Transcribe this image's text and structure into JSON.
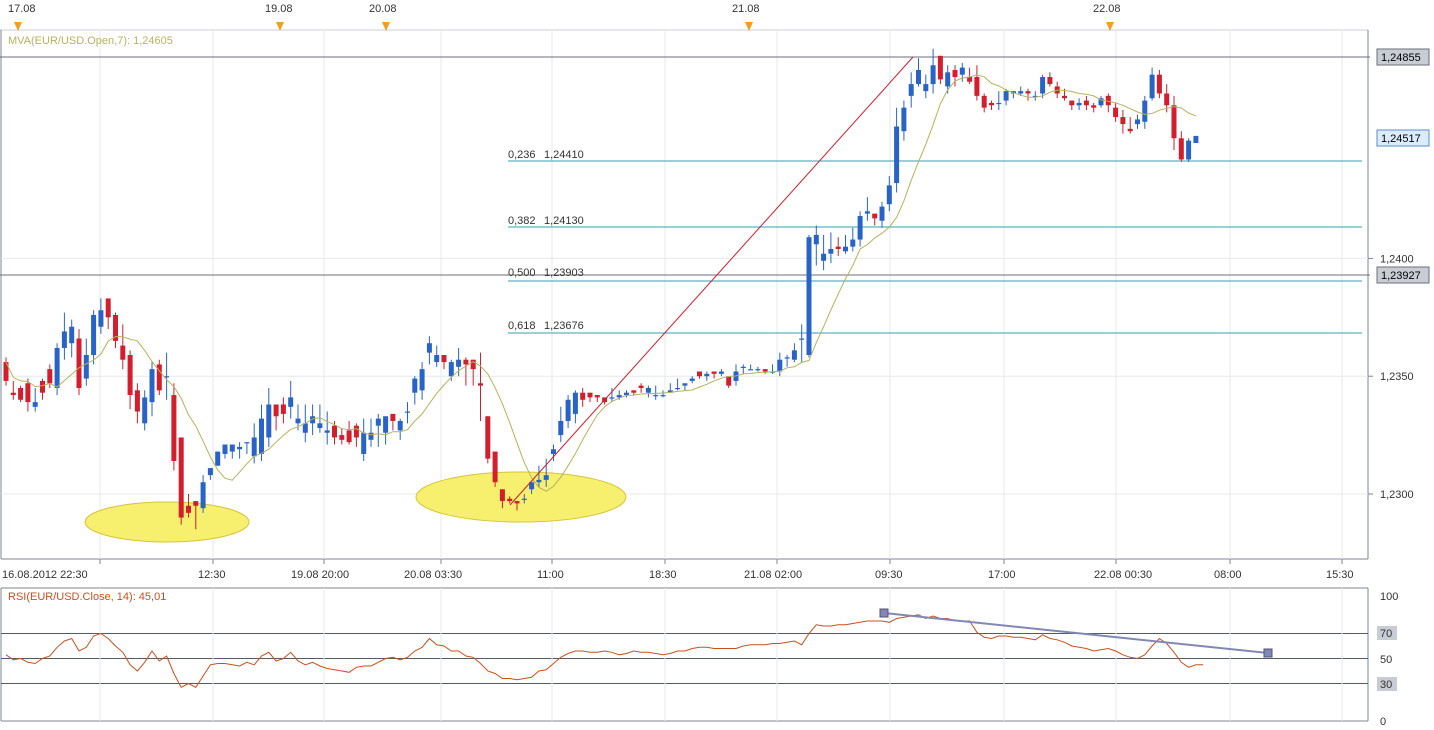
{
  "colors": {
    "bull": "#2864c8",
    "bear": "#d21e2d",
    "mva": "#b4b45a",
    "fib": "#32a0b4",
    "trend": "#d21e2d",
    "rsi": "#c8501e",
    "grid": "#e6e9ee",
    "axis": "#7d8796",
    "highlight": "#f7ef6e",
    "rsi_trend": "#8288b4"
  },
  "top_date_markers": [
    "17.08",
    "19.08",
    "20.08",
    "21.08",
    "22.08"
  ],
  "mva_label": "MVA(EUR/USD.Open,7): 1,24605",
  "rsi_label": "RSI(EUR/USD.Close, 14): 45,01",
  "fib_levels": [
    {
      "ratio": "0,236",
      "value": "1,24410"
    },
    {
      "ratio": "0,382",
      "value": "1,24130"
    },
    {
      "ratio": "0,500",
      "value": "1,23903"
    },
    {
      "ratio": "0,618",
      "value": "1,23676"
    }
  ],
  "price_ticks": [
    "1,2400",
    "1,2350",
    "1,2300"
  ],
  "price_badges": [
    "1,24855",
    "1,24517",
    "1,23927"
  ],
  "time_labels": [
    "16.08.2012 22:30",
    "12:30",
    "19.08 20:00",
    "20.08 03:30",
    "11:00",
    "18:30",
    "21.08 02:00",
    "09:30",
    "17:00",
    "22.08 00:30",
    "08:00",
    "15:30"
  ],
  "rsi_ticks": [
    "100",
    "70",
    "50",
    "30",
    "0"
  ],
  "chart_data": {
    "type": "candlestick",
    "symbol": "EUR/USD",
    "ylim": [
      1.2275,
      1.2505
    ],
    "price_ticks": [
      1.23,
      1.235,
      1.24
    ],
    "candles": [
      [
        1.2356,
        1.2358,
        1.2348,
        1.2346
      ],
      [
        1.2343,
        1.2348,
        1.2342,
        1.234
      ],
      [
        1.2345,
        1.2346,
        1.234,
        1.2339
      ],
      [
        1.2347,
        1.2349,
        1.2339,
        1.2335
      ],
      [
        1.2337,
        1.2345,
        1.2339,
        1.2335
      ],
      [
        1.2348,
        1.2349,
        1.2343,
        1.234
      ],
      [
        1.2353,
        1.2355,
        1.2347,
        1.2345
      ],
      [
        1.2345,
        1.2364,
        1.2362,
        1.2342
      ],
      [
        1.2362,
        1.2377,
        1.2369,
        1.2357
      ],
      [
        1.2364,
        1.2374,
        1.2371,
        1.2358
      ],
      [
        1.2366,
        1.237,
        1.2345,
        1.2342
      ],
      [
        1.2349,
        1.2366,
        1.2359,
        1.2346
      ],
      [
        1.2359,
        1.2378,
        1.2376,
        1.2355
      ],
      [
        1.2371,
        1.2383,
        1.2378,
        1.2368
      ],
      [
        1.2383,
        1.238,
        1.2375,
        1.237
      ],
      [
        1.2376,
        1.2377,
        1.2365,
        1.2362
      ],
      [
        1.2363,
        1.2372,
        1.2357,
        1.2353
      ],
      [
        1.2359,
        1.2361,
        1.2342,
        1.2336
      ],
      [
        1.2344,
        1.2347,
        1.2335,
        1.233
      ],
      [
        1.233,
        1.2344,
        1.2341,
        1.2327
      ],
      [
        1.2339,
        1.2356,
        1.2353,
        1.2333
      ],
      [
        1.2355,
        1.2357,
        1.2344,
        1.2342
      ],
      [
        1.235,
        1.236,
        1.235,
        1.234
      ],
      [
        1.2342,
        1.2347,
        1.2314,
        1.231
      ],
      [
        1.2324,
        1.2324,
        1.229,
        1.2287
      ],
      [
        1.2295,
        1.23,
        1.2292,
        1.229
      ],
      [
        1.2297,
        1.2297,
        1.2295,
        1.2285
      ],
      [
        1.2294,
        1.2308,
        1.2305,
        1.2292
      ],
      [
        1.2308,
        1.231,
        1.2311,
        1.2306
      ],
      [
        1.2312,
        1.2315,
        1.2318,
        1.2312
      ],
      [
        1.2317,
        1.2321,
        1.2321,
        1.2315
      ],
      [
        1.2318,
        1.2321,
        1.2321,
        1.2315
      ],
      [
        1.2319,
        1.2322,
        1.232,
        1.2315
      ],
      [
        1.2322,
        1.2321,
        1.2322,
        1.2317
      ],
      [
        1.2316,
        1.233,
        1.2324,
        1.2313
      ],
      [
        1.2317,
        1.2338,
        1.2332,
        1.2314
      ],
      [
        1.2324,
        1.2345,
        1.2338,
        1.232
      ],
      [
        1.2338,
        1.2335,
        1.2333,
        1.2327
      ],
      [
        1.2338,
        1.2341,
        1.2334,
        1.233
      ],
      [
        1.2337,
        1.2348,
        1.2341,
        1.2332
      ],
      [
        1.233,
        1.2338,
        1.2332,
        1.2327
      ],
      [
        1.2326,
        1.2338,
        1.233,
        1.2322
      ],
      [
        1.233,
        1.2338,
        1.2333,
        1.2325
      ],
      [
        1.2328,
        1.2338,
        1.233,
        1.2326
      ],
      [
        1.2326,
        1.2335,
        1.2327,
        1.2321
      ],
      [
        1.2329,
        1.2331,
        1.2324,
        1.2321
      ],
      [
        1.2325,
        1.2328,
        1.2323,
        1.2321
      ],
      [
        1.2327,
        1.2331,
        1.2322,
        1.2321
      ],
      [
        1.2329,
        1.233,
        1.2324,
        1.232
      ],
      [
        1.2317,
        1.2332,
        1.2326,
        1.2314
      ],
      [
        1.2323,
        1.2332,
        1.2326,
        1.232
      ],
      [
        1.2329,
        1.2334,
        1.2332,
        1.232
      ],
      [
        1.2326,
        1.2333,
        1.2333,
        1.2321
      ],
      [
        1.2334,
        1.2334,
        1.2331,
        1.2327
      ],
      [
        1.2327,
        1.2332,
        1.2331,
        1.2323
      ],
      [
        1.2335,
        1.2339,
        1.2335,
        1.233
      ],
      [
        1.2343,
        1.235,
        1.2349,
        1.2338
      ],
      [
        1.2344,
        1.2356,
        1.2353,
        1.234
      ],
      [
        1.236,
        1.2367,
        1.2364,
        1.2355
      ],
      [
        1.2356,
        1.2363,
        1.2359,
        1.2354
      ],
      [
        1.2359,
        1.2356,
        1.2356,
        1.2353
      ],
      [
        1.235,
        1.2357,
        1.2356,
        1.2348
      ],
      [
        1.2354,
        1.2362,
        1.2357,
        1.235
      ],
      [
        1.2357,
        1.2358,
        1.2355,
        1.2346
      ],
      [
        1.2357,
        1.2355,
        1.2353,
        1.2346
      ],
      [
        1.2347,
        1.236,
        1.2346,
        1.2331
      ],
      [
        1.2333,
        1.2331,
        1.2315,
        1.2313
      ],
      [
        1.2318,
        1.2311,
        1.2305,
        1.2303
      ],
      [
        1.2302,
        1.2302,
        1.2297,
        1.2294
      ],
      [
        1.2298,
        1.2299,
        1.2297,
        1.2296
      ],
      [
        1.2297,
        1.2296,
        1.2296,
        1.2293
      ],
      [
        1.2298,
        1.23,
        1.2298,
        1.2296
      ],
      [
        1.2302,
        1.2303,
        1.2305,
        1.23
      ],
      [
        1.2305,
        1.2312,
        1.2306,
        1.2303
      ],
      [
        1.2306,
        1.2315,
        1.2308,
        1.2303
      ],
      [
        1.2317,
        1.2321,
        1.2319,
        1.2314
      ],
      [
        1.2325,
        1.2337,
        1.2331,
        1.2322
      ],
      [
        1.2331,
        1.2342,
        1.234,
        1.2328
      ],
      [
        1.2334,
        1.2344,
        1.2343,
        1.233
      ],
      [
        1.2343,
        1.2345,
        1.234,
        1.2337
      ],
      [
        1.2343,
        1.2343,
        1.2341,
        1.2339
      ],
      [
        1.2342,
        1.2342,
        1.2341,
        1.2339
      ],
      [
        1.2341,
        1.234,
        1.2339,
        1.2338
      ],
      [
        1.2341,
        1.2345,
        1.2341,
        1.2339
      ],
      [
        1.2341,
        1.2344,
        1.2342,
        1.234
      ],
      [
        1.2342,
        1.2344,
        1.2343,
        1.2341
      ],
      [
        1.2344,
        1.2344,
        1.2343,
        1.2342
      ],
      [
        1.2346,
        1.2347,
        1.2345,
        1.2343
      ],
      [
        1.2343,
        1.2346,
        1.2345,
        1.2341
      ],
      [
        1.2342,
        1.2346,
        1.2342,
        1.234
      ],
      [
        1.2342,
        1.2344,
        1.2342,
        1.2341
      ],
      [
        1.2343,
        1.2347,
        1.2344,
        1.2343
      ],
      [
        1.2345,
        1.2349,
        1.2345,
        1.2344
      ],
      [
        1.2346,
        1.2346,
        1.2347,
        1.2344
      ],
      [
        1.2348,
        1.235,
        1.2349,
        1.2347
      ],
      [
        1.2352,
        1.2352,
        1.235,
        1.2349
      ],
      [
        1.235,
        1.2352,
        1.2351,
        1.2348
      ],
      [
        1.2352,
        1.2351,
        1.2351,
        1.2349
      ],
      [
        1.2351,
        1.2353,
        1.2352,
        1.235
      ],
      [
        1.235,
        1.2349,
        1.2346,
        1.2345
      ],
      [
        1.2348,
        1.2355,
        1.2352,
        1.2346
      ],
      [
        1.2354,
        1.2355,
        1.2354,
        1.2351
      ],
      [
        1.2353,
        1.2355,
        1.2353,
        1.2353
      ],
      [
        1.2353,
        1.2354,
        1.2353,
        1.2352
      ],
      [
        1.2353,
        1.2352,
        1.2352,
        1.2351
      ],
      [
        1.2352,
        1.2355,
        1.2352,
        1.2351
      ],
      [
        1.2352,
        1.236,
        1.2357,
        1.235
      ],
      [
        1.2358,
        1.2359,
        1.2358,
        1.2354
      ],
      [
        1.2357,
        1.2364,
        1.2361,
        1.2356
      ],
      [
        1.2366,
        1.2372,
        1.2366,
        1.2356
      ],
      [
        1.2359,
        1.241,
        1.2409,
        1.2358
      ],
      [
        1.2406,
        1.2414,
        1.241,
        1.2397
      ],
      [
        1.2399,
        1.241,
        1.2402,
        1.2395
      ],
      [
        1.2402,
        1.2411,
        1.2404,
        1.2398
      ],
      [
        1.2405,
        1.2409,
        1.2404,
        1.2401
      ],
      [
        1.2403,
        1.241,
        1.2405,
        1.2402
      ],
      [
        1.2405,
        1.2413,
        1.2408,
        1.2403
      ],
      [
        1.2408,
        1.242,
        1.2418,
        1.2405
      ],
      [
        1.2419,
        1.2426,
        1.242,
        1.2416
      ],
      [
        1.2419,
        1.2418,
        1.2417,
        1.2414
      ],
      [
        1.2416,
        1.2424,
        1.2422,
        1.2413
      ],
      [
        1.2423,
        1.2435,
        1.2431,
        1.242
      ],
      [
        1.2432,
        1.2464,
        1.2456,
        1.2428
      ],
      [
        1.2454,
        1.2467,
        1.2464,
        1.245
      ],
      [
        1.2469,
        1.2479,
        1.2474,
        1.2464
      ],
      [
        1.2474,
        1.2485,
        1.248,
        1.2473
      ],
      [
        1.2471,
        1.2478,
        1.2474,
        1.2468
      ],
      [
        1.2474,
        1.2489,
        1.2482,
        1.247
      ],
      [
        1.2486,
        1.2485,
        1.2476,
        1.2474
      ],
      [
        1.2473,
        1.2482,
        1.2479,
        1.247
      ],
      [
        1.248,
        1.2482,
        1.2477,
        1.2473
      ],
      [
        1.2478,
        1.2483,
        1.2481,
        1.2475
      ],
      [
        1.2477,
        1.2481,
        1.2475,
        1.2474
      ],
      [
        1.2477,
        1.2482,
        1.2469,
        1.2467
      ],
      [
        1.2469,
        1.247,
        1.2464,
        1.2462
      ],
      [
        1.2466,
        1.2467,
        1.2465,
        1.2463
      ],
      [
        1.2466,
        1.2471,
        1.2466,
        1.2463
      ],
      [
        1.2467,
        1.2472,
        1.2471,
        1.2465
      ],
      [
        1.247,
        1.2471,
        1.2471,
        1.2468
      ],
      [
        1.247,
        1.2473,
        1.2471,
        1.2469
      ],
      [
        1.2471,
        1.2472,
        1.247,
        1.2467
      ],
      [
        1.2469,
        1.2471,
        1.2469,
        1.2467
      ],
      [
        1.247,
        1.2478,
        1.2477,
        1.2468
      ],
      [
        1.2477,
        1.2479,
        1.2474,
        1.2473
      ],
      [
        1.2473,
        1.2475,
        1.247,
        1.2468
      ],
      [
        1.2469,
        1.2472,
        1.2468,
        1.2467
      ],
      [
        1.2467,
        1.2467,
        1.2465,
        1.2463
      ],
      [
        1.2465,
        1.2468,
        1.2466,
        1.2463
      ],
      [
        1.2467,
        1.2469,
        1.2465,
        1.2463
      ],
      [
        1.2465,
        1.2466,
        1.2464,
        1.2462
      ],
      [
        1.2465,
        1.2469,
        1.2468,
        1.2464
      ],
      [
        1.2469,
        1.247,
        1.2465,
        1.2462
      ],
      [
        1.2464,
        1.2466,
        1.246,
        1.2458
      ],
      [
        1.246,
        1.2463,
        1.2457,
        1.2453
      ],
      [
        1.2455,
        1.246,
        1.2454,
        1.2453
      ],
      [
        1.2457,
        1.2461,
        1.2459,
        1.2455
      ],
      [
        1.2458,
        1.2469,
        1.2467,
        1.2455
      ],
      [
        1.2468,
        1.2481,
        1.2478,
        1.2467
      ],
      [
        1.2478,
        1.248,
        1.247,
        1.2468
      ],
      [
        1.247,
        1.2474,
        1.2465,
        1.2462
      ],
      [
        1.2465,
        1.2469,
        1.2451,
        1.2446
      ],
      [
        1.2451,
        1.2454,
        1.2442,
        1.2441
      ],
      [
        1.2442,
        1.2451,
        1.245,
        1.2441
      ],
      [
        1.2449,
        1.2451,
        1.2452,
        1.2449
      ]
    ],
    "ohlc_field_order": [
      "open",
      "high",
      "close",
      "low"
    ],
    "mva": {
      "name": "MVA(EUR/USD.Open,7)",
      "last": 1.24605
    },
    "fibonacci": {
      "high": 1.24855,
      "low": 1.2295,
      "levels": [
        [
          0.236,
          1.2441
        ],
        [
          0.382,
          1.2413
        ],
        [
          0.5,
          1.23903
        ],
        [
          0.618,
          1.23676
        ]
      ]
    },
    "price_markers": [
      1.24855,
      1.24517,
      1.23927
    ],
    "time_labels": [
      "16.08.2012 22:30",
      "12:30",
      "19.08 20:00",
      "20.08 03:30",
      "11:00",
      "18:30",
      "21.08 02:00",
      "09:30",
      "17:00",
      "22.08 00:30",
      "08:00",
      "15:30"
    ],
    "rsi": {
      "name": "RSI(EUR/USD.Close, 14)",
      "last": 45.01,
      "ylim": [
        0,
        100
      ],
      "levels": [
        100,
        70,
        50,
        30,
        0
      ],
      "values": [
        53,
        49,
        50,
        47,
        46,
        50,
        52,
        59,
        64,
        66,
        56,
        59,
        68,
        70,
        66,
        60,
        55,
        45,
        40,
        47,
        56,
        48,
        52,
        38,
        27,
        30,
        27,
        36,
        45,
        46,
        46,
        45,
        44,
        47,
        45,
        52,
        55,
        48,
        50,
        55,
        48,
        45,
        47,
        44,
        42,
        41,
        40,
        39,
        43,
        44,
        44,
        47,
        50,
        51,
        49,
        51,
        56,
        59,
        66,
        61,
        60,
        56,
        56,
        52,
        51,
        46,
        40,
        38,
        34,
        34,
        33,
        34,
        35,
        40,
        41,
        46,
        51,
        54,
        56,
        56,
        55,
        55,
        56,
        55,
        53,
        54,
        56,
        55,
        55,
        54,
        53,
        54,
        56,
        56,
        58,
        59,
        59,
        58,
        58,
        58,
        58,
        60,
        61,
        61,
        61,
        62,
        62,
        63,
        64,
        61,
        70,
        77,
        76,
        76,
        77,
        77,
        78,
        79,
        80,
        80,
        80,
        79,
        82,
        83,
        84,
        85,
        82,
        84,
        82,
        82,
        80,
        80,
        80,
        71,
        67,
        66,
        68,
        68,
        67,
        67,
        66,
        65,
        69,
        66,
        65,
        63,
        60,
        59,
        58,
        56,
        57,
        58,
        56,
        53,
        51,
        50,
        53,
        60,
        66,
        62,
        55,
        47,
        43,
        45,
        45
      ],
      "highlight_zone": [
        0,
        0
      ]
    },
    "rsi_ticks": [
      100,
      70,
      50,
      30,
      0
    ]
  }
}
